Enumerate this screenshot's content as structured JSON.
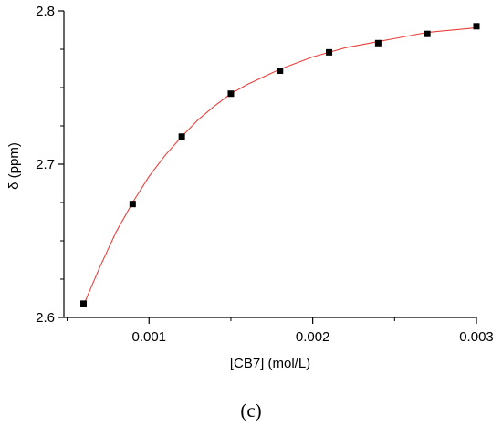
{
  "chart_data": {
    "type": "scatter",
    "panel_label": "(c)",
    "xlabel": "[CB7] (mol/L)",
    "ylabel": "δ (ppm)",
    "xlim": [
      0.00048,
      0.003
    ],
    "ylim": [
      2.6,
      2.8
    ],
    "x_ticks": [
      0.001,
      0.002,
      0.003
    ],
    "x_tick_labels": [
      "0.001",
      "0.002",
      "0.003"
    ],
    "x_minor_ticks": [
      0.0005,
      0.0015,
      0.0025
    ],
    "y_ticks": [
      2.6,
      2.7,
      2.8
    ],
    "y_tick_labels": [
      "2.6",
      "2.7",
      "2.8"
    ],
    "y_minor_ticks": [
      2.625,
      2.65,
      2.675,
      2.725,
      2.75,
      2.775
    ],
    "grid": false,
    "series": [
      {
        "points": [
          {
            "x": 0.0006,
            "y": 2.609
          },
          {
            "x": 0.0009,
            "y": 2.674
          },
          {
            "x": 0.0012,
            "y": 2.718
          },
          {
            "x": 0.0015,
            "y": 2.746
          },
          {
            "x": 0.0018,
            "y": 2.761
          },
          {
            "x": 0.0021,
            "y": 2.773
          },
          {
            "x": 0.0024,
            "y": 2.779
          },
          {
            "x": 0.0027,
            "y": 2.785
          },
          {
            "x": 0.003,
            "y": 2.79
          }
        ],
        "marker_color": "#000000"
      }
    ],
    "fit_curve": {
      "color": "#e8403a",
      "x": [
        0.0006,
        0.0007,
        0.0008,
        0.0009,
        0.001,
        0.0011,
        0.0012,
        0.0013,
        0.0014,
        0.0015,
        0.0016,
        0.0017,
        0.0018,
        0.0019,
        0.002,
        0.0021,
        0.0022,
        0.0023,
        0.0024,
        0.0025,
        0.0026,
        0.0027,
        0.0028,
        0.0029,
        0.003
      ],
      "y": [
        2.608,
        2.633,
        2.656,
        2.675,
        2.692,
        2.706,
        2.718,
        2.729,
        2.738,
        2.746,
        2.752,
        2.757,
        2.762,
        2.766,
        2.77,
        2.773,
        2.776,
        2.778,
        2.78,
        2.782,
        2.784,
        2.786,
        2.787,
        2.788,
        2.789
      ]
    }
  }
}
